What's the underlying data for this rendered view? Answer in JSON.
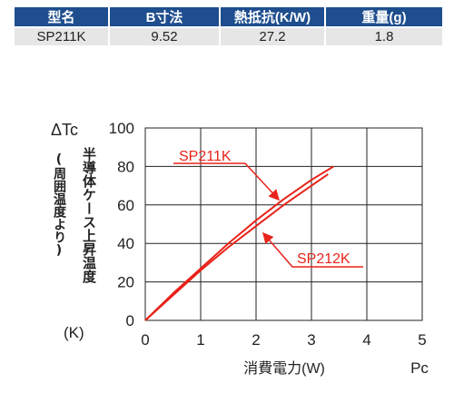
{
  "spec_table": {
    "headers": [
      "型名",
      "B寸法",
      "熱抵抗(K/W)",
      "重量(g)"
    ],
    "rows": [
      [
        "SP211K",
        "9.52",
        "27.2",
        "1.8"
      ]
    ]
  },
  "chart_labels": {
    "y_symbol": "ΔTc",
    "y_main": "半導体ケース上昇温度",
    "y_paren": "(周囲温度より)",
    "y_unit": "(K)",
    "x_title": "消費電力(W)",
    "x_symbol": "Pc"
  },
  "colors": {
    "table_header": "#1f4e8e",
    "table_row": "#e6e6e6",
    "series": "#e8231a",
    "grid": "#222222"
  },
  "chart_data": {
    "type": "line",
    "xlabel": "消費電力(W)",
    "ylabel": "半導体ケース上昇温度(周囲温度より)(K)",
    "xlim": [
      0,
      5
    ],
    "ylim": [
      0,
      100
    ],
    "x_ticks": [
      0,
      1,
      2,
      3,
      4,
      5
    ],
    "y_ticks": [
      0,
      20,
      40,
      60,
      80,
      100
    ],
    "grid": true,
    "series": [
      {
        "name": "SP211K",
        "x": [
          0,
          0.5,
          1,
          1.5,
          2,
          2.5,
          3,
          3.4
        ],
        "y": [
          0,
          14,
          27,
          40,
          52,
          63,
          73,
          80
        ]
      },
      {
        "name": "SP212K",
        "x": [
          0,
          0.5,
          1,
          1.5,
          2,
          2.5,
          3,
          3.3
        ],
        "y": [
          0,
          13,
          26,
          38,
          49,
          60,
          70,
          76
        ]
      }
    ]
  }
}
